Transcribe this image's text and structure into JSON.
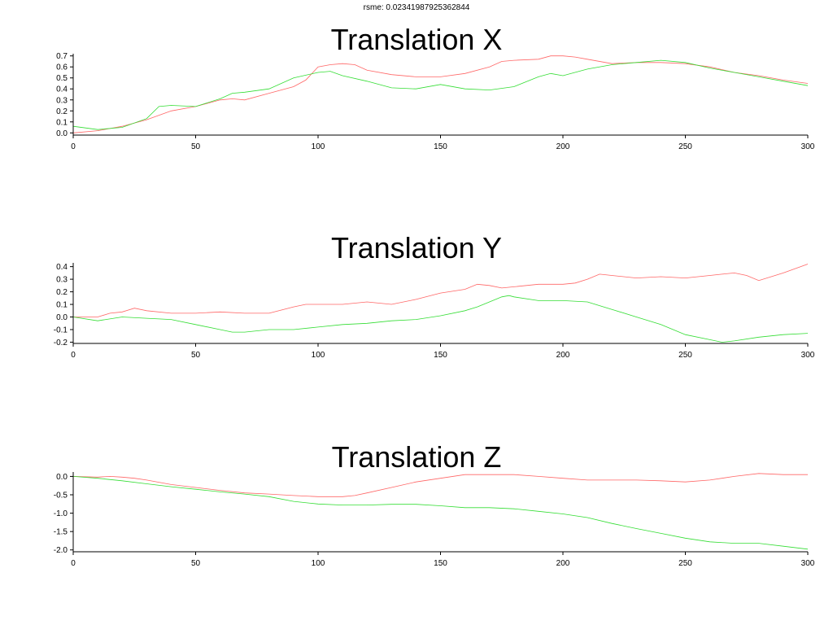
{
  "suptitle": "rsme: 0.02341987925362844",
  "colors": {
    "series_a": "#ff6666",
    "series_b": "#33dd33",
    "axis": "#000000"
  },
  "chart_data": [
    {
      "type": "line",
      "title": "Translation X",
      "xlabel": "",
      "ylabel": "",
      "xlim": [
        0,
        300
      ],
      "ylim": [
        -0.02,
        0.72
      ],
      "xticks": [
        0,
        50,
        100,
        150,
        200,
        250,
        300
      ],
      "xtick_labels": [
        "0",
        "50",
        "100",
        "150",
        "200",
        "250",
        "300"
      ],
      "yticks": [
        0.0,
        0.1,
        0.2,
        0.3,
        0.4,
        0.5,
        0.6,
        0.7
      ],
      "ytick_labels": [
        "0.0",
        "0.1",
        "0.2",
        "0.3",
        "0.4",
        "0.5",
        "0.6",
        "0.7"
      ],
      "grid": false,
      "series": [
        {
          "color": "#ff6666",
          "x": [
            0,
            10,
            20,
            30,
            40,
            50,
            60,
            65,
            70,
            80,
            90,
            95,
            100,
            105,
            110,
            115,
            120,
            130,
            140,
            150,
            160,
            170,
            175,
            180,
            190,
            195,
            200,
            205,
            210,
            220,
            230,
            240,
            250,
            260,
            270,
            280,
            290,
            300
          ],
          "y": [
            0.0,
            0.02,
            0.06,
            0.12,
            0.2,
            0.24,
            0.3,
            0.31,
            0.3,
            0.36,
            0.42,
            0.48,
            0.6,
            0.62,
            0.63,
            0.62,
            0.57,
            0.53,
            0.51,
            0.51,
            0.54,
            0.6,
            0.65,
            0.66,
            0.67,
            0.7,
            0.7,
            0.69,
            0.67,
            0.63,
            0.64,
            0.64,
            0.63,
            0.6,
            0.55,
            0.52,
            0.48,
            0.45
          ]
        },
        {
          "color": "#33dd33",
          "x": [
            0,
            10,
            20,
            30,
            35,
            40,
            50,
            60,
            65,
            70,
            80,
            90,
            100,
            105,
            110,
            120,
            130,
            140,
            150,
            160,
            170,
            180,
            190,
            195,
            200,
            210,
            220,
            230,
            240,
            250,
            260,
            270,
            280,
            290,
            300
          ],
          "y": [
            0.06,
            0.03,
            0.05,
            0.13,
            0.24,
            0.25,
            0.24,
            0.31,
            0.36,
            0.37,
            0.4,
            0.5,
            0.55,
            0.56,
            0.52,
            0.47,
            0.41,
            0.4,
            0.44,
            0.4,
            0.39,
            0.42,
            0.51,
            0.54,
            0.52,
            0.58,
            0.62,
            0.64,
            0.66,
            0.64,
            0.59,
            0.55,
            0.51,
            0.47,
            0.43
          ]
        }
      ]
    },
    {
      "type": "line",
      "title": "Translation Y",
      "xlabel": "",
      "ylabel": "",
      "xlim": [
        0,
        300
      ],
      "ylim": [
        -0.21,
        0.43
      ],
      "xticks": [
        0,
        50,
        100,
        150,
        200,
        250,
        300
      ],
      "xtick_labels": [
        "0",
        "50",
        "100",
        "150",
        "200",
        "250",
        "300"
      ],
      "yticks": [
        -0.2,
        -0.1,
        0.0,
        0.1,
        0.2,
        0.3,
        0.4
      ],
      "ytick_labels": [
        "-0.2",
        "-0.1",
        "0.0",
        "0.1",
        "0.2",
        "0.3",
        "0.4"
      ],
      "grid": false,
      "series": [
        {
          "color": "#ff6666",
          "x": [
            0,
            10,
            15,
            20,
            25,
            30,
            40,
            50,
            60,
            70,
            80,
            90,
            95,
            100,
            110,
            120,
            130,
            140,
            150,
            160,
            165,
            170,
            175,
            180,
            190,
            200,
            205,
            210,
            215,
            220,
            230,
            240,
            250,
            260,
            265,
            270,
            275,
            280,
            290,
            300
          ],
          "y": [
            0.0,
            0.0,
            0.03,
            0.04,
            0.07,
            0.05,
            0.03,
            0.03,
            0.04,
            0.03,
            0.03,
            0.08,
            0.1,
            0.1,
            0.1,
            0.12,
            0.1,
            0.14,
            0.19,
            0.22,
            0.26,
            0.25,
            0.23,
            0.24,
            0.26,
            0.26,
            0.27,
            0.3,
            0.34,
            0.33,
            0.31,
            0.32,
            0.31,
            0.33,
            0.34,
            0.35,
            0.33,
            0.29,
            0.35,
            0.42
          ]
        },
        {
          "color": "#33dd33",
          "x": [
            0,
            10,
            20,
            30,
            40,
            50,
            60,
            65,
            70,
            80,
            90,
            100,
            110,
            120,
            130,
            140,
            150,
            160,
            165,
            170,
            175,
            178,
            180,
            190,
            200,
            210,
            220,
            230,
            240,
            250,
            260,
            265,
            270,
            280,
            290,
            300
          ],
          "y": [
            0.0,
            -0.03,
            0.0,
            -0.01,
            -0.02,
            -0.06,
            -0.1,
            -0.12,
            -0.12,
            -0.1,
            -0.1,
            -0.08,
            -0.06,
            -0.05,
            -0.03,
            -0.02,
            0.01,
            0.05,
            0.08,
            0.12,
            0.16,
            0.17,
            0.16,
            0.13,
            0.13,
            0.12,
            0.06,
            0.0,
            -0.06,
            -0.14,
            -0.18,
            -0.2,
            -0.19,
            -0.16,
            -0.14,
            -0.13
          ]
        }
      ]
    },
    {
      "type": "line",
      "title": "Translation Z",
      "xlabel": "",
      "ylabel": "",
      "xlim": [
        0,
        300
      ],
      "ylim": [
        -2.05,
        0.12
      ],
      "xticks": [
        0,
        50,
        100,
        150,
        200,
        250,
        300
      ],
      "xtick_labels": [
        "0",
        "50",
        "100",
        "150",
        "200",
        "250",
        "300"
      ],
      "yticks": [
        -2.0,
        -1.5,
        -1.0,
        -0.5,
        0.0
      ],
      "ytick_labels": [
        "-2.0",
        "-1.5",
        "-1.0",
        "-0.5",
        "0.0"
      ],
      "grid": false,
      "series": [
        {
          "color": "#ff6666",
          "x": [
            0,
            10,
            15,
            20,
            25,
            30,
            40,
            50,
            60,
            70,
            80,
            90,
            100,
            110,
            115,
            120,
            130,
            140,
            150,
            160,
            170,
            180,
            190,
            200,
            210,
            220,
            230,
            240,
            250,
            260,
            270,
            280,
            290,
            300
          ],
          "y": [
            0.0,
            -0.02,
            0.0,
            -0.02,
            -0.05,
            -0.1,
            -0.22,
            -0.3,
            -0.38,
            -0.45,
            -0.48,
            -0.52,
            -0.55,
            -0.55,
            -0.52,
            -0.45,
            -0.3,
            -0.15,
            -0.05,
            0.05,
            0.05,
            0.05,
            0.0,
            -0.05,
            -0.1,
            -0.1,
            -0.1,
            -0.12,
            -0.15,
            -0.1,
            0.0,
            0.08,
            0.05,
            0.05
          ]
        },
        {
          "color": "#33dd33",
          "x": [
            0,
            10,
            20,
            30,
            40,
            50,
            60,
            70,
            80,
            90,
            100,
            110,
            120,
            130,
            140,
            150,
            160,
            170,
            180,
            190,
            200,
            210,
            220,
            230,
            240,
            250,
            260,
            270,
            280,
            290,
            300
          ],
          "y": [
            0.0,
            -0.05,
            -0.12,
            -0.2,
            -0.28,
            -0.35,
            -0.42,
            -0.48,
            -0.55,
            -0.68,
            -0.75,
            -0.78,
            -0.78,
            -0.76,
            -0.76,
            -0.8,
            -0.85,
            -0.85,
            -0.88,
            -0.95,
            -1.02,
            -1.12,
            -1.28,
            -1.42,
            -1.55,
            -1.68,
            -1.78,
            -1.82,
            -1.82,
            -1.9,
            -1.98
          ]
        }
      ]
    }
  ]
}
